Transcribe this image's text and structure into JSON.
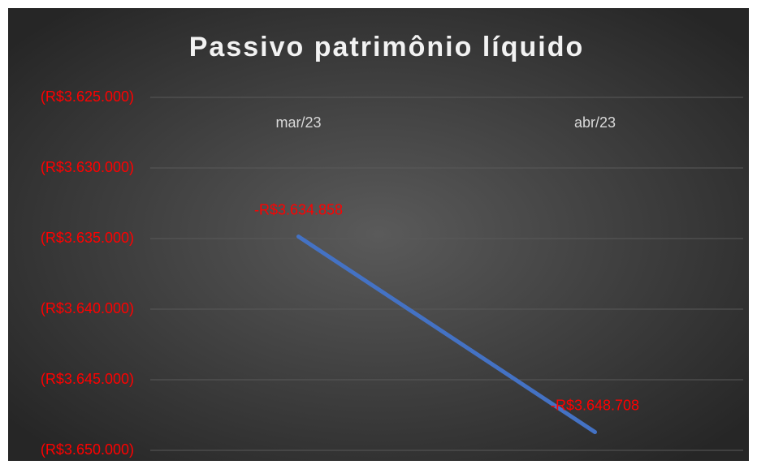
{
  "chart_data": {
    "type": "line",
    "title": "Passivo patrimônio líquido",
    "categories": [
      "mar/23",
      "abr/23"
    ],
    "series": [
      {
        "name": "Passivo patrimônio líquido",
        "color": "#4472c4",
        "values": [
          -3634858,
          -3648708
        ],
        "value_labels": [
          "-R$3.634.858",
          "-R$3.648.708"
        ]
      }
    ],
    "ylim": [
      -3650000,
      -3625000
    ],
    "yticks": [
      {
        "value": -3625000,
        "label": "(R$3.625.000)"
      },
      {
        "value": -3630000,
        "label": "(R$3.630.000)"
      },
      {
        "value": -3635000,
        "label": "(R$3.635.000)"
      },
      {
        "value": -3640000,
        "label": "(R$3.640.000)"
      },
      {
        "value": -3645000,
        "label": "(R$3.645.000)"
      },
      {
        "value": -3650000,
        "label": "(R$3.650.000)"
      }
    ],
    "grid": true
  }
}
